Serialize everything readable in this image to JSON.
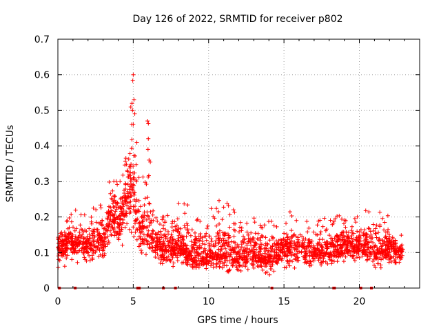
{
  "chart_data": {
    "type": "scatter",
    "title": "Day 126 of 2022, SRMTID for receiver p802",
    "xlabel": "GPS time / hours",
    "ylabel": "SRMTID / TECUs",
    "xlim": [
      0,
      24
    ],
    "ylim": [
      0,
      0.7
    ],
    "x_ticks": [
      0,
      5,
      10,
      15,
      20
    ],
    "x_tick_labels": [
      "0",
      "5",
      "10",
      "15",
      "20"
    ],
    "y_ticks": [
      0,
      0.1,
      0.2,
      0.3,
      0.4,
      0.5,
      0.6,
      0.7
    ],
    "y_tick_labels": [
      "0",
      "0.1",
      "0.2",
      "0.3",
      "0.4",
      "0.5",
      "0.6",
      "0.7"
    ],
    "grid": true,
    "marker": "+",
    "color": "#ff0000",
    "x_range_hours": [
      0.0,
      22.9
    ],
    "envelope": {
      "x": [
        0,
        1,
        2,
        3,
        3.5,
        4,
        4.5,
        5,
        5.5,
        6,
        6.5,
        7,
        8,
        9,
        10,
        11,
        12,
        13,
        14,
        15,
        16,
        17,
        18,
        19,
        20,
        21,
        22,
        22.9
      ],
      "median": [
        0.12,
        0.13,
        0.12,
        0.14,
        0.2,
        0.18,
        0.25,
        0.3,
        0.15,
        0.17,
        0.12,
        0.11,
        0.12,
        0.09,
        0.09,
        0.1,
        0.09,
        0.1,
        0.08,
        0.11,
        0.11,
        0.1,
        0.1,
        0.13,
        0.12,
        0.1,
        0.11,
        0.1
      ],
      "max": [
        0.17,
        0.22,
        0.22,
        0.24,
        0.33,
        0.3,
        0.38,
        0.6,
        0.25,
        0.47,
        0.2,
        0.2,
        0.27,
        0.22,
        0.22,
        0.26,
        0.2,
        0.2,
        0.19,
        0.24,
        0.18,
        0.2,
        0.2,
        0.21,
        0.21,
        0.25,
        0.2,
        0.15
      ],
      "min": [
        0.05,
        0.06,
        0.06,
        0.07,
        0.1,
        0.1,
        0.12,
        0.08,
        0.06,
        0.08,
        0.06,
        0.05,
        0.05,
        0.04,
        0.03,
        0.03,
        0.03,
        0.04,
        0.03,
        0.05,
        0.05,
        0.05,
        0.04,
        0.06,
        0.06,
        0.05,
        0.05,
        0.05
      ]
    },
    "zero_level_marks_x": [
      0.1,
      1.15,
      5.3,
      5.4,
      7.0,
      7.8,
      14.2,
      18.3,
      18.35,
      20.1,
      20.8
    ]
  }
}
